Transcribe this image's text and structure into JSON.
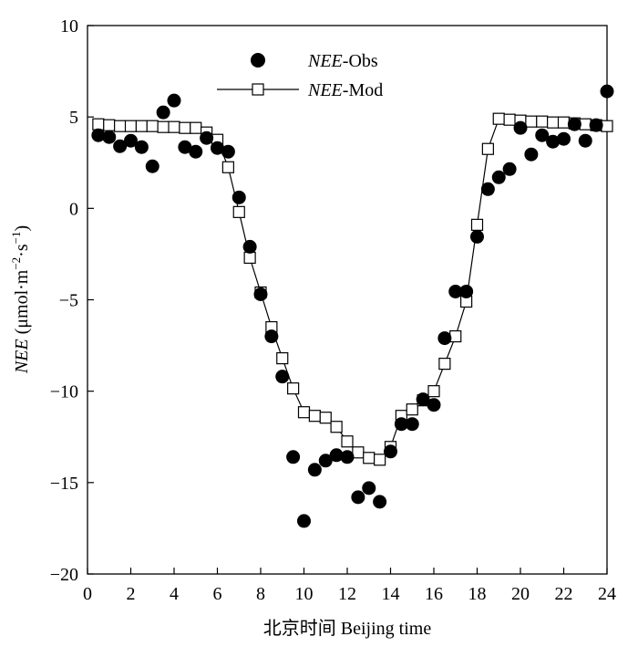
{
  "chart_data": {
    "type": "scatter",
    "xlabel": "北京时间 Beijing time",
    "ylabel": {
      "italic": "NEE",
      "rest": " (μmol·m",
      "sup1": "−2",
      "mid": "·s",
      "sup2": "−1",
      "end": ")"
    },
    "xlim": [
      0,
      24
    ],
    "ylim": [
      -20,
      10
    ],
    "xticks": [
      0,
      2,
      4,
      6,
      8,
      10,
      12,
      14,
      16,
      18,
      20,
      22,
      24
    ],
    "yticks": [
      -20,
      -15,
      -10,
      -5,
      0,
      5,
      10
    ],
    "grid": false,
    "legend_position": "top-center",
    "series": [
      {
        "name": "NEE-Obs",
        "name_italic": "NEE",
        "name_rest": "-Obs",
        "style": "filled-circle",
        "color": "#000000",
        "x": [
          0.5,
          1,
          1.5,
          2,
          2.5,
          3,
          3.5,
          4,
          4.5,
          5,
          5.5,
          6,
          6.5,
          7,
          7.5,
          8,
          8.5,
          9,
          9.5,
          10,
          10.5,
          11,
          11.5,
          12,
          12.5,
          13,
          13.5,
          14,
          14.5,
          15,
          15.5,
          16,
          16.5,
          17,
          17.5,
          18,
          18.5,
          19,
          19.5,
          20,
          20.5,
          21,
          21.5,
          22,
          22.5,
          23,
          23.5,
          24
        ],
        "y": [
          4.0,
          3.9,
          3.4,
          3.7,
          3.35,
          2.3,
          5.25,
          5.9,
          3.35,
          3.1,
          3.85,
          3.3,
          3.1,
          0.6,
          -2.1,
          -4.7,
          -7.0,
          -9.2,
          -13.6,
          -17.1,
          -14.3,
          -13.8,
          -13.5,
          -13.6,
          -15.8,
          -15.3,
          -16.05,
          -13.3,
          -11.8,
          -11.8,
          -10.45,
          -10.75,
          -7.1,
          -4.55,
          -4.55,
          -1.55,
          1.05,
          1.7,
          2.15,
          4.4,
          2.95,
          4.0,
          3.65,
          3.8,
          4.6,
          3.7,
          4.55,
          6.4
        ]
      },
      {
        "name": "NEE-Mod",
        "name_italic": "NEE",
        "name_rest": "-Mod",
        "style": "open-square-line",
        "color": "#000000",
        "x": [
          0.5,
          1,
          1.5,
          2,
          2.5,
          3,
          3.5,
          4,
          4.5,
          5,
          5.5,
          6,
          6.5,
          7,
          7.5,
          8,
          8.5,
          9,
          9.5,
          10,
          10.5,
          11,
          11.5,
          12,
          12.5,
          13,
          13.5,
          14,
          14.5,
          15,
          15.5,
          16,
          16.5,
          17,
          17.5,
          18,
          18.5,
          19,
          19.5,
          20,
          20.5,
          21,
          21.5,
          22,
          22.5,
          23,
          23.5,
          24
        ],
        "y": [
          4.6,
          4.55,
          4.5,
          4.5,
          4.5,
          4.5,
          4.45,
          4.45,
          4.4,
          4.4,
          4.15,
          3.75,
          2.25,
          -0.2,
          -2.7,
          -4.6,
          -6.5,
          -8.2,
          -9.85,
          -11.15,
          -11.35,
          -11.45,
          -11.95,
          -12.75,
          -13.35,
          -13.65,
          -13.75,
          -13.05,
          -11.35,
          -11.0,
          -10.5,
          -10.0,
          -8.5,
          -7.0,
          -5.1,
          -0.9,
          3.25,
          4.9,
          4.85,
          4.8,
          4.75,
          4.75,
          4.7,
          4.7,
          4.65,
          4.6,
          4.55,
          4.5
        ]
      }
    ]
  }
}
